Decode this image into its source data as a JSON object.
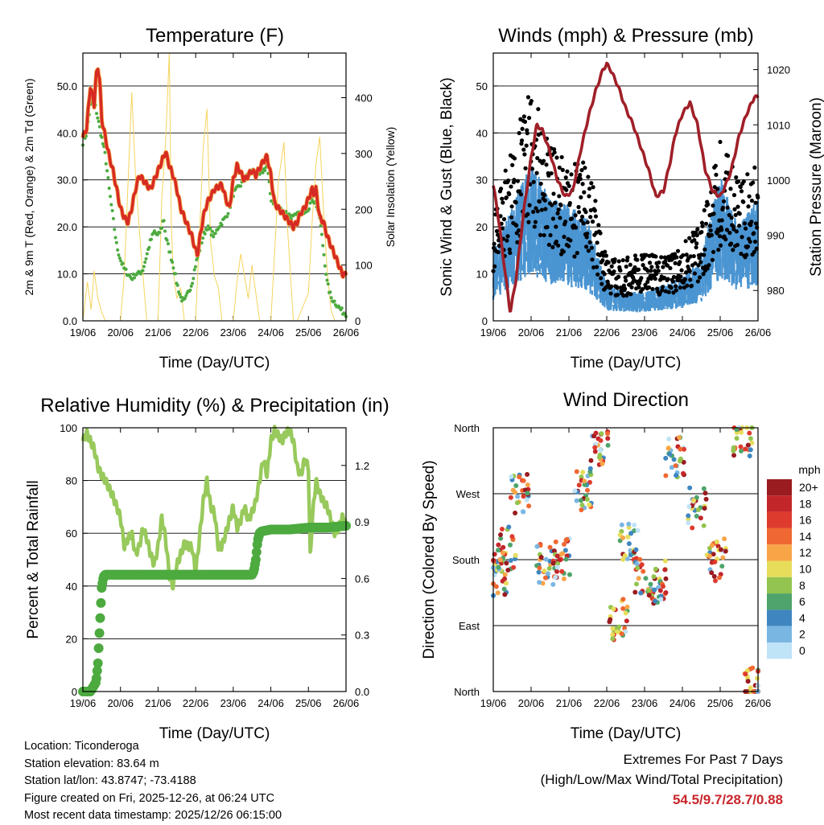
{
  "chart_data": [
    {
      "type": "line",
      "title": "Temperature (F)",
      "xlabel": "Time (Day/UTC)",
      "ylabel": "2m & 9m T (Red, Orange) & 2m Td (Green)",
      "ylabel_right": "Solar Insolation (Yellow)",
      "xticks": [
        "19/06",
        "20/06",
        "21/06",
        "22/06",
        "23/06",
        "24/06",
        "25/06",
        "26/06"
      ],
      "xlim": [
        0,
        7
      ],
      "ylim": [
        0,
        57
      ],
      "yticks": [
        "0.0",
        "10.0",
        "20.0",
        "30.0",
        "40.0",
        "50.0"
      ],
      "y2lim": [
        0,
        480
      ],
      "y2ticks": [
        "0",
        "100",
        "200",
        "300",
        "400"
      ],
      "series": [
        {
          "name": "2m & 9m Temperature",
          "color": "#d62a25",
          "x": [
            0,
            0.1,
            0.2,
            0.3,
            0.35,
            0.4,
            0.45,
            0.5,
            0.6,
            0.7,
            0.8,
            0.9,
            1.0,
            1.1,
            1.2,
            1.3,
            1.4,
            1.5,
            1.6,
            1.8,
            2.0,
            2.1,
            2.2,
            2.3,
            2.4,
            2.5,
            2.6,
            2.7,
            2.8,
            2.9,
            3.0,
            3.05,
            3.1,
            3.2,
            3.3,
            3.5,
            3.7,
            3.8,
            3.9,
            4.0,
            4.1,
            4.3,
            4.5,
            4.6,
            4.8,
            4.9,
            5.0,
            5.1,
            5.2,
            5.4,
            5.6,
            5.7,
            5.8,
            5.9,
            6.0,
            6.1,
            6.15,
            6.2,
            6.3,
            6.4,
            6.5,
            6.6,
            6.7,
            6.8,
            6.9,
            7.0
          ],
          "y": [
            39,
            41,
            50,
            46,
            52,
            54,
            51,
            43,
            39,
            35,
            32,
            28,
            24,
            22,
            21,
            24,
            28,
            31,
            30,
            28,
            32,
            34,
            36,
            33,
            31,
            28,
            24,
            22,
            20,
            18,
            15,
            14,
            17,
            22,
            25,
            28,
            29,
            26,
            24,
            30,
            33,
            30,
            32,
            31,
            34,
            35,
            31,
            25,
            24,
            22,
            20,
            21,
            23,
            24,
            26,
            28,
            27,
            28,
            22,
            21,
            18,
            16,
            14,
            12,
            10,
            9.7
          ]
        },
        {
          "name": "2m Dewpoint",
          "color": "#4caa3f",
          "x": [
            0,
            0.1,
            0.2,
            0.3,
            0.4,
            0.5,
            0.55,
            0.6,
            0.7,
            0.8,
            0.9,
            1.0,
            1.1,
            1.2,
            1.3,
            1.4,
            1.5,
            1.6,
            1.7,
            1.8,
            1.9,
            2.0,
            2.1,
            2.15,
            2.2,
            2.3,
            2.4,
            2.5,
            2.6,
            2.7,
            2.8,
            2.9,
            3.0,
            3.1,
            3.2,
            3.3,
            3.4,
            3.5,
            3.6,
            3.7,
            3.8,
            3.9,
            4.0,
            4.1,
            4.2,
            4.3,
            4.4,
            4.5,
            4.6,
            4.7,
            4.8,
            4.9,
            5.0,
            5.1,
            5.2,
            5.4,
            5.6,
            5.8,
            6.0,
            6.1,
            6.2,
            6.3,
            6.4,
            6.5,
            6.6,
            6.7,
            6.8,
            6.9,
            7.0
          ],
          "y": [
            38,
            40,
            46,
            47,
            43,
            39,
            37,
            35,
            28,
            22,
            16,
            13,
            11,
            10,
            9,
            10,
            10,
            11,
            14,
            17,
            19,
            18,
            20,
            22,
            18,
            15,
            12,
            8,
            5,
            4,
            6,
            8,
            12,
            15,
            18,
            20,
            19,
            18,
            20,
            21,
            22,
            24,
            27,
            28,
            29,
            30,
            31,
            32,
            32,
            31,
            32,
            33,
            26,
            25,
            24,
            23,
            22,
            23,
            24,
            26,
            25,
            22,
            15,
            8,
            5,
            4,
            3,
            2,
            1.5
          ]
        },
        {
          "name": "Solar Insolation",
          "color": "#f5d45e",
          "axis": "right",
          "x": [
            0,
            0.12,
            0.22,
            0.3,
            0.4,
            0.5,
            0.6,
            1.0,
            1.1,
            1.3,
            1.4,
            1.55,
            1.7,
            2.0,
            2.1,
            2.2,
            2.3,
            2.35,
            2.4,
            2.5,
            2.6,
            2.7,
            3.0,
            3.1,
            3.2,
            3.3,
            3.4,
            3.5,
            3.6,
            3.7,
            4.0,
            4.1,
            4.2,
            4.3,
            4.4,
            4.5,
            4.7,
            5.0,
            5.1,
            5.2,
            5.35,
            5.45,
            5.6,
            5.7,
            6.0,
            6.1,
            6.2,
            6.3,
            6.4,
            6.5,
            6.6,
            6.7,
            7.0
          ],
          "y": [
            0,
            70,
            20,
            90,
            40,
            15,
            0,
            0,
            80,
            410,
            260,
            120,
            0,
            0,
            220,
            320,
            480,
            180,
            90,
            40,
            60,
            0,
            0,
            150,
            310,
            380,
            140,
            80,
            60,
            0,
            0,
            70,
            120,
            80,
            40,
            100,
            0,
            0,
            120,
            250,
            320,
            160,
            0,
            0,
            50,
            180,
            280,
            330,
            200,
            90,
            20,
            0,
            0
          ]
        }
      ]
    },
    {
      "type": "scatter",
      "title": "Winds (mph) & Pressure (mb)",
      "xlabel": "Time (Day/UTC)",
      "ylabel": "Sonic Wind & Gust (Blue, Black)",
      "ylabel_right": "Station Pressure (Maroon)",
      "xticks": [
        "19/06",
        "20/06",
        "21/06",
        "22/06",
        "23/06",
        "24/06",
        "25/06",
        "26/06"
      ],
      "xlim": [
        0,
        7
      ],
      "ylim": [
        0,
        57
      ],
      "yticks": [
        "0",
        "10",
        "20",
        "30",
        "40",
        "50"
      ],
      "y2lim": [
        974.5,
        1023
      ],
      "y2ticks": [
        "980",
        "990",
        "1000",
        "1010",
        "1020"
      ],
      "series": [
        {
          "name": "Sonic Wind",
          "color": "#4a95d2",
          "x": [
            0,
            0.5,
            1,
            1.5,
            2,
            2.5,
            3,
            3.5,
            4,
            4.5,
            5,
            5.5,
            6,
            6.5,
            7
          ],
          "y": [
            10,
            16,
            22,
            17,
            16,
            14,
            5,
            4,
            4,
            5,
            6,
            9,
            20,
            13,
            17
          ]
        },
        {
          "name": "Gust",
          "color": "#000000",
          "x": [
            0,
            0.5,
            1,
            1.5,
            2,
            2.5,
            3,
            3.5,
            4,
            4.5,
            5,
            5.5,
            6,
            6.5,
            7
          ],
          "y": [
            15,
            25,
            35,
            25,
            23,
            23,
            9,
            9,
            10,
            9,
            11,
            14,
            26,
            20,
            23
          ]
        },
        {
          "name": "Station Pressure",
          "color": "#a01f28",
          "axis": "right",
          "x": [
            0,
            0.1,
            0.3,
            0.45,
            0.6,
            0.8,
            1.0,
            1.15,
            1.3,
            1.5,
            1.7,
            1.9,
            2.1,
            2.3,
            2.5,
            2.7,
            2.9,
            3.0,
            3.1,
            3.3,
            3.5,
            3.7,
            3.9,
            4.1,
            4.3,
            4.5,
            4.7,
            4.8,
            5.0,
            5.2,
            5.4,
            5.6,
            5.8,
            6.0,
            6.2,
            6.3,
            6.4,
            6.5,
            6.7,
            6.9,
            7.0
          ],
          "y": [
            999,
            995,
            984,
            976,
            982,
            994,
            1004,
            1010,
            1009,
            1005,
            1000,
            997,
            998,
            1005,
            1011,
            1016,
            1020,
            1021,
            1020,
            1017,
            1013,
            1010,
            1006,
            1002,
            997,
            998,
            1004,
            1008,
            1012,
            1014,
            1010,
            1002,
            998,
            997,
            1000,
            1002,
            1005,
            1008,
            1012,
            1015,
            1015
          ]
        }
      ]
    },
    {
      "type": "line",
      "title": "Relative Humidity (%) & Precipitation (in)",
      "xlabel": "Time (Day/UTC)",
      "ylabel": "Percent & Total Rainfall",
      "xticks": [
        "19/06",
        "20/06",
        "21/06",
        "22/06",
        "23/06",
        "24/06",
        "25/06",
        "26/06"
      ],
      "xlim": [
        0,
        7
      ],
      "ylim": [
        0,
        100
      ],
      "yticks": [
        "0",
        "20",
        "40",
        "60",
        "80",
        "100"
      ],
      "y2lim": [
        0,
        1.4
      ],
      "y2ticks": [
        "0.0",
        "0.3",
        "0.6",
        "0.9",
        "1.2"
      ],
      "series": [
        {
          "name": "Relative Humidity",
          "color": "#98c95c",
          "x": [
            0,
            0.1,
            0.2,
            0.3,
            0.4,
            0.5,
            0.6,
            0.7,
            0.8,
            0.9,
            1.0,
            1.1,
            1.2,
            1.3,
            1.4,
            1.5,
            1.6,
            1.7,
            1.8,
            1.9,
            2.0,
            2.1,
            2.2,
            2.3,
            2.4,
            2.5,
            2.6,
            2.7,
            2.8,
            2.9,
            3.0,
            3.1,
            3.2,
            3.3,
            3.4,
            3.5,
            3.6,
            3.7,
            3.8,
            3.9,
            4.0,
            4.1,
            4.2,
            4.3,
            4.4,
            4.5,
            4.6,
            4.7,
            4.8,
            4.9,
            5.0,
            5.1,
            5.2,
            5.3,
            5.4,
            5.5,
            5.6,
            5.7,
            5.8,
            5.9,
            6.0,
            6.05,
            6.1,
            6.2,
            6.3,
            6.4,
            6.5,
            6.6,
            6.7,
            6.8,
            6.9,
            7.0
          ],
          "y": [
            95,
            98,
            95,
            92,
            85,
            82,
            80,
            77,
            74,
            70,
            66,
            55,
            58,
            60,
            52,
            55,
            62,
            58,
            52,
            48,
            55,
            66,
            58,
            44,
            40,
            48,
            52,
            56,
            55,
            55,
            45,
            58,
            72,
            80,
            70,
            68,
            55,
            55,
            60,
            65,
            70,
            62,
            65,
            70,
            65,
            68,
            72,
            80,
            88,
            82,
            95,
            99,
            97,
            95,
            98,
            99,
            95,
            85,
            82,
            88,
            85,
            50,
            65,
            80,
            75,
            72,
            70,
            65,
            60,
            62,
            66,
            64
          ]
        },
        {
          "name": "Total Precipitation",
          "color": "#4caa3f",
          "axis": "right",
          "x": [
            0,
            0.2,
            0.35,
            0.4,
            0.45,
            0.5,
            0.55,
            0.6,
            1.0,
            2.0,
            3.0,
            4.0,
            4.5,
            4.55,
            4.6,
            4.65,
            4.7,
            4.75,
            5.0,
            5.5,
            6.0,
            6.5,
            7.0
          ],
          "y": [
            0,
            0,
            0.05,
            0.15,
            0.35,
            0.55,
            0.61,
            0.62,
            0.62,
            0.62,
            0.62,
            0.62,
            0.62,
            0.64,
            0.7,
            0.8,
            0.84,
            0.85,
            0.86,
            0.86,
            0.87,
            0.87,
            0.88
          ]
        }
      ]
    },
    {
      "type": "scatter",
      "title": "Wind Direction",
      "xlabel": "Time (Day/UTC)",
      "ylabel": "Direction (Colored By Speed)",
      "xticks": [
        "19/06",
        "20/06",
        "21/06",
        "22/06",
        "23/06",
        "24/06",
        "25/06",
        "26/06"
      ],
      "xlim": [
        0,
        7
      ],
      "ylim": [
        0,
        360
      ],
      "yticks": [
        "North",
        "East",
        "South",
        "West",
        "North"
      ],
      "colorbar": {
        "title": "mph",
        "labels": [
          "20+",
          "18",
          "16",
          "14",
          "12",
          "10",
          "8",
          "6",
          "4",
          "2",
          "0"
        ],
        "colors": [
          "#9a1b20",
          "#c3262a",
          "#de3b2e",
          "#f06831",
          "#f8a548",
          "#e7dd5b",
          "#93c44f",
          "#4ea46a",
          "#3f86c1",
          "#7ab6e2",
          "#bfe3f7"
        ]
      },
      "series": [
        {
          "name": "Direction",
          "x": [
            0.1,
            0.35,
            0.7,
            1.4,
            1.8,
            2.4,
            2.8,
            3.3,
            3.6,
            4.0,
            4.4,
            4.8,
            5.4,
            5.9,
            6.6,
            6.9
          ],
          "y": [
            160,
            195,
            270,
            175,
            180,
            275,
            330,
            100,
            200,
            160,
            150,
            320,
            250,
            180,
            350,
            5
          ]
        }
      ]
    }
  ],
  "info": {
    "location": "Location: Ticonderoga",
    "elevation": "Station elevation: 83.64 m",
    "latlon": "Station lat/lon: 43.8747; -73.4188",
    "created": "Figure created on Fri, 2025-12-26, at 06:24 UTC",
    "recent": "Most recent data timestamp: 2025/12/26 06:15:00"
  },
  "extremes": {
    "title": "Extremes For Past 7 Days",
    "subtitle": "(High/Low/Max Wind/Total Precipitation)",
    "values": "54.5/9.7/28.7/0.88"
  }
}
